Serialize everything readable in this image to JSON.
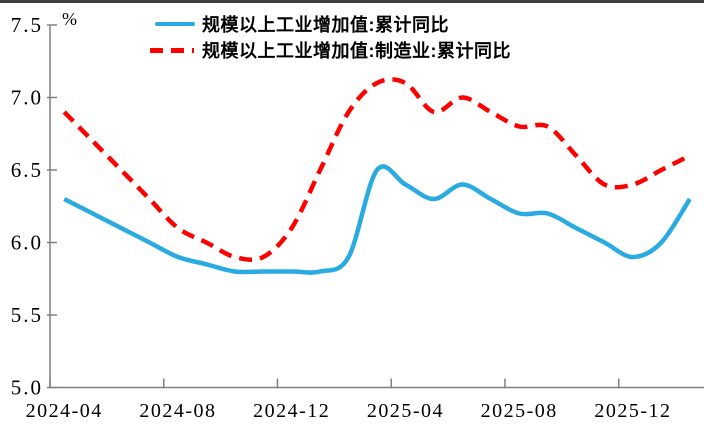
{
  "page": {
    "background": "#ffffff",
    "top_border_color": "#3f3f3f"
  },
  "chart_data": {
    "type": "line",
    "title": "",
    "unit": "%",
    "xlabel": "",
    "ylabel": "%",
    "grid": false,
    "legend_position": "top",
    "ylim": [
      5.0,
      7.5
    ],
    "y_tick_labels": [
      "5.0",
      "5.5",
      "6.0",
      "6.5",
      "7.0",
      "7.5"
    ],
    "x": [
      "2024-04",
      "2024-05",
      "2024-06",
      "2024-07",
      "2024-08",
      "2024-09",
      "2024-10",
      "2024-11",
      "2024-12",
      "2025-01",
      "2025-02",
      "2025-03",
      "2025-04",
      "2025-05",
      "2025-06",
      "2025-07",
      "2025-08",
      "2025-09",
      "2025-10",
      "2025-11",
      "2025-12",
      "2026-01",
      "2026-02"
    ],
    "x_ticks": [
      {
        "index": 0,
        "label": "2024-04"
      },
      {
        "index": 4,
        "label": "2024-08"
      },
      {
        "index": 8,
        "label": "2024-12"
      },
      {
        "index": 12,
        "label": "2025-04"
      },
      {
        "index": 16,
        "label": "2025-08"
      },
      {
        "index": 20,
        "label": "2025-12"
      }
    ],
    "axis_color": "#808080",
    "series": [
      {
        "name": "规模以上工业增加值:累计同比",
        "color": "#29ABE2",
        "dash": "solid",
        "values": [
          6.3,
          6.2,
          6.1,
          6.0,
          5.9,
          5.85,
          5.8,
          5.8,
          5.8,
          5.8,
          5.9,
          6.5,
          6.4,
          6.3,
          6.4,
          6.3,
          6.2,
          6.2,
          6.1,
          6.0,
          5.9,
          6.0,
          6.3
        ]
      },
      {
        "name": "规模以上工业增加值:制造业:累计同比",
        "color": "#FF0000",
        "dash": "dashed",
        "values": [
          6.9,
          6.7,
          6.5,
          6.3,
          6.1,
          6.0,
          5.9,
          5.9,
          6.1,
          6.5,
          6.9,
          7.1,
          7.1,
          6.9,
          7.0,
          6.9,
          6.8,
          6.8,
          6.6,
          6.4,
          6.4,
          6.5,
          6.6
        ]
      }
    ]
  }
}
